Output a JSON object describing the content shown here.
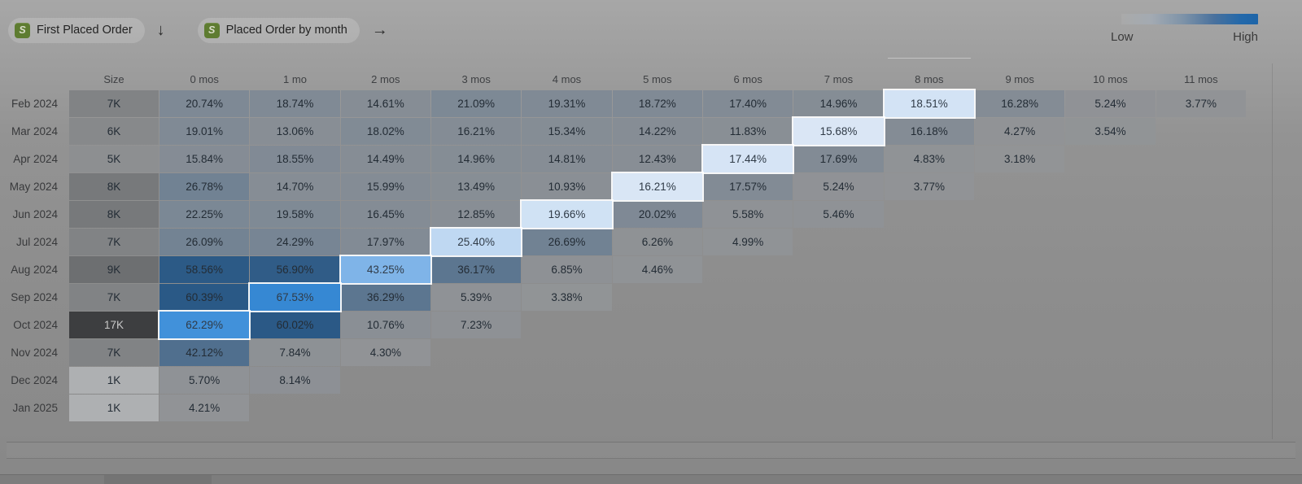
{
  "header": {
    "pills": [
      {
        "label": "First Placed Order",
        "icon": "shopify-bag",
        "arrow_glyph": "↓"
      },
      {
        "label": "Placed Order by month",
        "icon": "shopify-bag",
        "arrow_glyph": "→"
      }
    ],
    "legend": {
      "low_label": "Low",
      "high_label": "High",
      "gradient_low_color": "#b3b3b3",
      "gradient_high_color": "#1d64a8"
    }
  },
  "chart_data": {
    "type": "heatmap",
    "size_label": "Size",
    "columns": [
      "0 mos",
      "1 mo",
      "2 mos",
      "3 mos",
      "4 mos",
      "5 mos",
      "6 mos",
      "7 mos",
      "8 mos",
      "9 mos",
      "10 mos",
      "11 mos"
    ],
    "highlighted_column": "8 mos",
    "legend_position": "top-right",
    "color_low": "#f4f6f8",
    "color_high": "#135f9d",
    "dim_overlay": "rgba(0,0,0,0.39)",
    "highlight_border_color": "#ffffff",
    "rows": [
      {
        "cohort": "Feb 2024",
        "size": "7K",
        "highlight_index": 8,
        "values": [
          "20.74%",
          "18.74%",
          "14.61%",
          "21.09%",
          "19.31%",
          "18.72%",
          "17.40%",
          "14.96%",
          "18.51%",
          "16.28%",
          "5.24%",
          "3.77%"
        ]
      },
      {
        "cohort": "Mar 2024",
        "size": "6K",
        "highlight_index": 7,
        "values": [
          "19.01%",
          "13.06%",
          "18.02%",
          "16.21%",
          "15.34%",
          "14.22%",
          "11.83%",
          "15.68%",
          "16.18%",
          "4.27%",
          "3.54%"
        ]
      },
      {
        "cohort": "Apr 2024",
        "size": "5K",
        "highlight_index": 6,
        "values": [
          "15.84%",
          "18.55%",
          "14.49%",
          "14.96%",
          "14.81%",
          "12.43%",
          "17.44%",
          "17.69%",
          "4.83%",
          "3.18%"
        ]
      },
      {
        "cohort": "May 2024",
        "size": "8K",
        "highlight_index": 5,
        "values": [
          "26.78%",
          "14.70%",
          "15.99%",
          "13.49%",
          "10.93%",
          "16.21%",
          "17.57%",
          "5.24%",
          "3.77%"
        ]
      },
      {
        "cohort": "Jun 2024",
        "size": "8K",
        "highlight_index": 4,
        "values": [
          "22.25%",
          "19.58%",
          "16.45%",
          "12.85%",
          "19.66%",
          "20.02%",
          "5.58%",
          "5.46%"
        ]
      },
      {
        "cohort": "Jul 2024",
        "size": "7K",
        "highlight_index": 3,
        "values": [
          "26.09%",
          "24.29%",
          "17.97%",
          "25.40%",
          "26.69%",
          "6.26%",
          "4.99%"
        ]
      },
      {
        "cohort": "Aug 2024",
        "size": "9K",
        "highlight_index": 2,
        "values": [
          "58.56%",
          "56.90%",
          "43.25%",
          "36.17%",
          "6.85%",
          "4.46%"
        ]
      },
      {
        "cohort": "Sep 2024",
        "size": "7K",
        "highlight_index": 1,
        "values": [
          "60.39%",
          "67.53%",
          "36.29%",
          "5.39%",
          "3.38%"
        ]
      },
      {
        "cohort": "Oct 2024",
        "size": "17K",
        "highlight_index": 0,
        "values": [
          "62.29%",
          "60.02%",
          "10.76%",
          "7.23%"
        ]
      },
      {
        "cohort": "Nov 2024",
        "size": "7K",
        "highlight_index": null,
        "values": [
          "42.12%",
          "7.84%",
          "4.30%"
        ]
      },
      {
        "cohort": "Dec 2024",
        "size": "1K",
        "highlight_index": null,
        "values": [
          "5.70%",
          "8.14%"
        ]
      },
      {
        "cohort": "Jan 2025",
        "size": "1K",
        "highlight_index": null,
        "values": [
          "4.21%"
        ]
      }
    ]
  }
}
